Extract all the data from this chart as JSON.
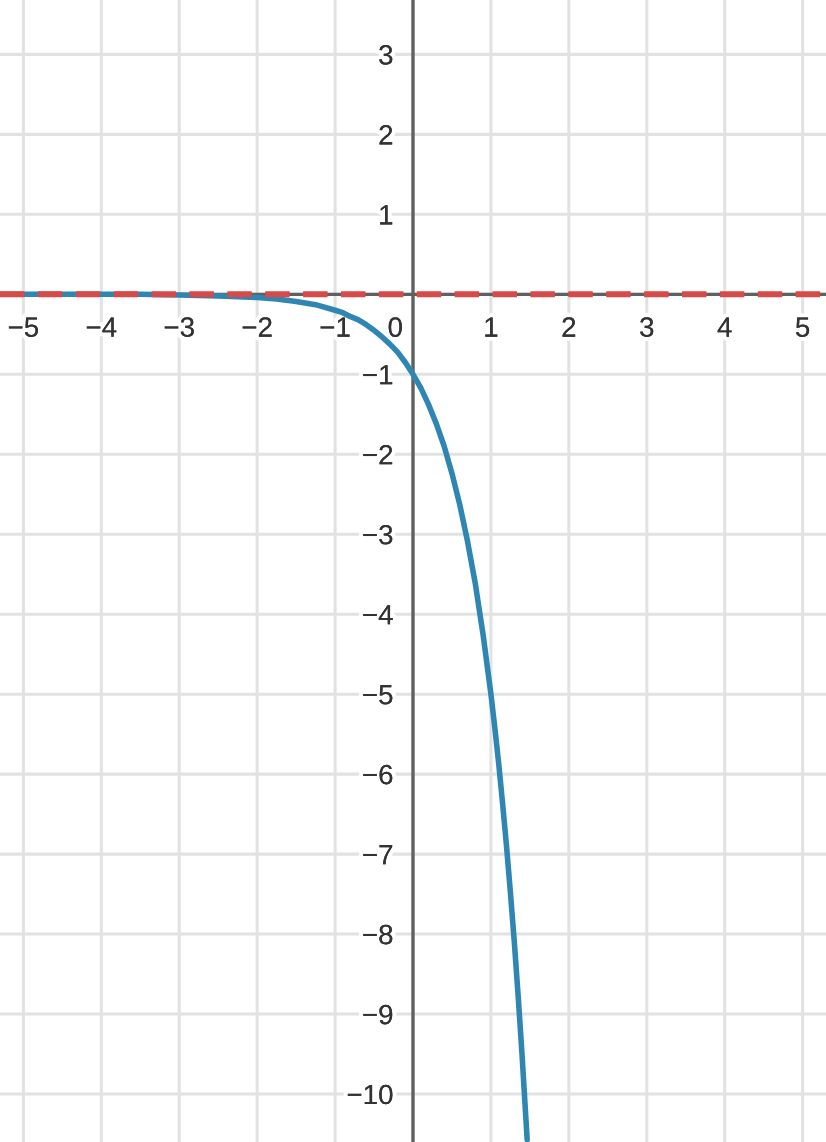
{
  "chart_data": {
    "type": "line",
    "x": [
      -5.3,
      -4.5,
      -4,
      -3.5,
      -3,
      -2.5,
      -2.25,
      -2,
      -1.75,
      -1.5,
      -1.25,
      -1,
      -0.9,
      -0.8,
      -0.7,
      -0.6,
      -0.5,
      -0.4,
      -0.3,
      -0.2,
      -0.1,
      0,
      0.1,
      0.2,
      0.3,
      0.4,
      0.5,
      0.6,
      0.7,
      0.8,
      0.9,
      1,
      1.05,
      1.1,
      1.15,
      1.2,
      1.25,
      1.3,
      1.35,
      1.4,
      1.465
    ],
    "series": [
      {
        "color": "#2f86b2",
        "values": [
          0,
          0,
          0,
          0,
          -0.01,
          -0.02,
          -0.03,
          -0.04,
          -0.06,
          -0.09,
          -0.13,
          -0.2,
          -0.23,
          -0.28,
          -0.32,
          -0.38,
          -0.45,
          -0.53,
          -0.62,
          -0.72,
          -0.85,
          -1,
          -1.17,
          -1.38,
          -1.62,
          -1.9,
          -2.24,
          -2.63,
          -3.09,
          -3.62,
          -4.26,
          -5,
          -5.42,
          -5.87,
          -6.37,
          -6.9,
          -7.48,
          -8.1,
          -8.78,
          -9.52,
          -10.57
        ]
      }
    ],
    "xlim": [
      -5.3,
      5.3
    ],
    "ylim": [
      -10.6,
      3.68
    ],
    "xticks": [
      {
        "value": -5,
        "label": "−5"
      },
      {
        "value": -4,
        "label": "−4"
      },
      {
        "value": -3,
        "label": "−3"
      },
      {
        "value": -2,
        "label": "−2"
      },
      {
        "value": -1,
        "label": "−1"
      },
      0,
      1,
      2,
      3,
      4,
      5
    ],
    "yticks": [
      3,
      2,
      1,
      {
        "value": 0,
        "label": null
      },
      {
        "value": -1,
        "label": "−1"
      },
      {
        "value": -2,
        "label": "−2"
      },
      {
        "value": -3,
        "label": "−3"
      },
      {
        "value": -4,
        "label": "−4"
      },
      {
        "value": -5,
        "label": "−5"
      },
      {
        "value": -6,
        "label": "−6"
      },
      {
        "value": -7,
        "label": "−7"
      },
      {
        "value": -8,
        "label": "−8"
      },
      {
        "value": -9,
        "label": "−9"
      },
      {
        "value": -10,
        "label": "−10"
      }
    ],
    "grid": true,
    "ref_lines": [
      {
        "axis": "y",
        "value": 0,
        "color": "#d64a4a",
        "line_style": "dashed"
      }
    ]
  }
}
